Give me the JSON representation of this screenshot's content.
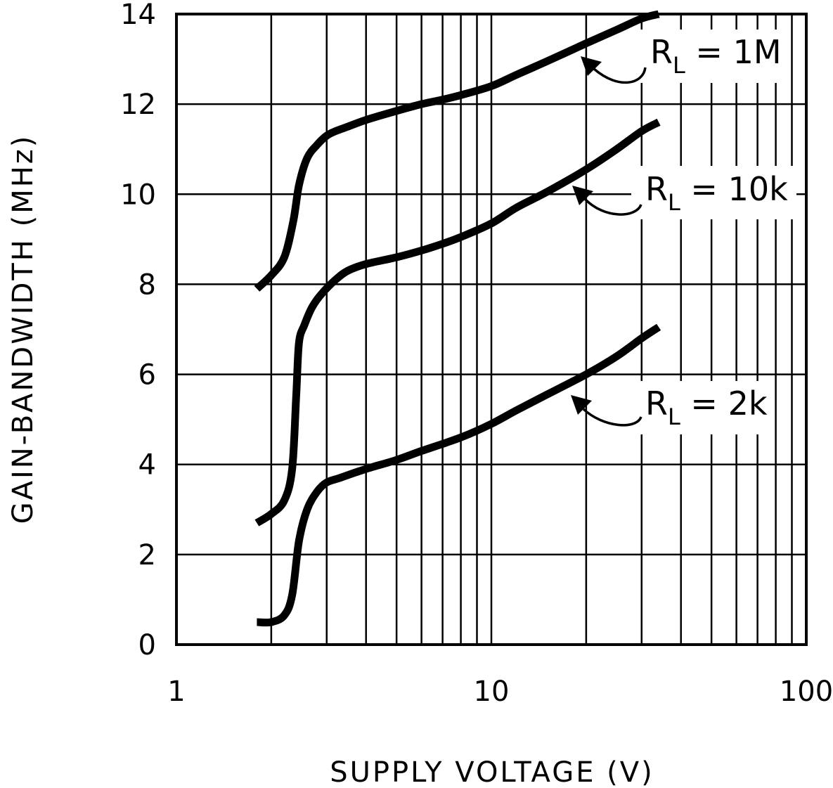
{
  "chart_data": {
    "type": "line",
    "xlabel": "SUPPLY VOLTAGE (V)",
    "ylabel": "GAIN-BANDWIDTH (MHz)",
    "x_scale": "log",
    "xlim": [
      1,
      100
    ],
    "ylim": [
      0,
      14
    ],
    "x_ticks": [
      1,
      10,
      100
    ],
    "x_tick_labels": [
      "1",
      "10",
      "100"
    ],
    "y_ticks": [
      0,
      2,
      4,
      6,
      8,
      10,
      12,
      14
    ],
    "y_tick_labels": [
      "0",
      "2",
      "4",
      "6",
      "8",
      "10",
      "12",
      "14"
    ],
    "grid": true,
    "series": [
      {
        "label_main": "R",
        "label_sub": "L",
        "label_rest": " = 1M",
        "x": [
          1.8,
          2.0,
          2.2,
          2.35,
          2.45,
          2.6,
          2.8,
          3.0,
          3.2,
          3.5,
          4,
          5,
          6,
          7,
          8,
          10,
          12,
          15,
          20,
          25,
          30,
          34
        ],
        "y": [
          7.9,
          8.2,
          8.6,
          9.4,
          10.2,
          10.8,
          11.1,
          11.3,
          11.4,
          11.5,
          11.65,
          11.85,
          12.0,
          12.1,
          12.2,
          12.4,
          12.65,
          12.95,
          13.35,
          13.65,
          13.9,
          14.0
        ]
      },
      {
        "label_main": "R",
        "label_sub": "L",
        "label_rest": " = 10k",
        "x": [
          1.8,
          2.0,
          2.2,
          2.33,
          2.4,
          2.45,
          2.55,
          2.7,
          2.9,
          3.2,
          3.5,
          4,
          5,
          6,
          7,
          8,
          10,
          12,
          15,
          20,
          25,
          30,
          34
        ],
        "y": [
          2.7,
          2.9,
          3.2,
          3.9,
          5.5,
          6.7,
          7.1,
          7.5,
          7.8,
          8.1,
          8.3,
          8.45,
          8.6,
          8.75,
          8.9,
          9.05,
          9.35,
          9.7,
          10.05,
          10.55,
          11.0,
          11.4,
          11.6
        ]
      },
      {
        "label_main": "R",
        "label_sub": "L",
        "label_rest": " = 2k",
        "x": [
          1.8,
          2.0,
          2.2,
          2.33,
          2.45,
          2.6,
          2.8,
          3.0,
          3.3,
          4,
          5,
          6,
          8,
          10,
          12,
          15,
          20,
          25,
          30,
          34
        ],
        "y": [
          0.5,
          0.5,
          0.65,
          1.1,
          2.3,
          3.0,
          3.4,
          3.6,
          3.7,
          3.9,
          4.1,
          4.3,
          4.6,
          4.9,
          5.2,
          5.55,
          6.0,
          6.4,
          6.8,
          7.05
        ]
      }
    ]
  }
}
